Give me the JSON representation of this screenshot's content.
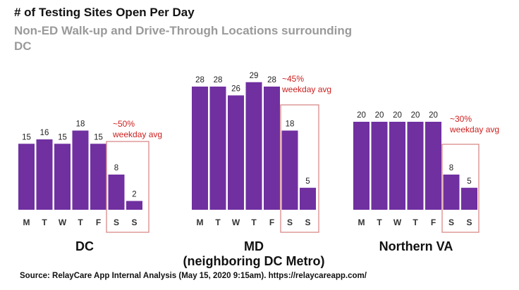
{
  "title": "# of Testing Sites Open Per Day",
  "subtitle": "Non-ED Walk-up and Drive-Through Locations surrounding DC",
  "source": "Source: RelayCare App Internal Analysis (May 15, 2020 9:15am). https://relaycareapp.com/",
  "colors": {
    "bar": "#7030a0",
    "annotation": "#cc1e1e",
    "box": "#d98a8a"
  },
  "chart_data": [
    {
      "type": "bar",
      "title": "DC",
      "categories": [
        "M",
        "T",
        "W",
        "T",
        "F",
        "S",
        "S"
      ],
      "values": [
        15,
        16,
        15,
        18,
        15,
        8,
        2
      ],
      "annotation": [
        "~50%",
        "weekday avg"
      ]
    },
    {
      "type": "bar",
      "title": "MD\n(neighboring DC Metro)",
      "categories": [
        "M",
        "T",
        "W",
        "T",
        "F",
        "S",
        "S"
      ],
      "values": [
        28,
        28,
        26,
        29,
        28,
        18,
        5
      ],
      "annotation": [
        "~45%",
        "weekday avg"
      ]
    },
    {
      "type": "bar",
      "title": "Northern VA",
      "categories": [
        "M",
        "T",
        "W",
        "T",
        "F",
        "S",
        "S"
      ],
      "values": [
        20,
        20,
        20,
        20,
        20,
        8,
        5
      ],
      "annotation": [
        "~30%",
        "weekday avg"
      ]
    }
  ]
}
